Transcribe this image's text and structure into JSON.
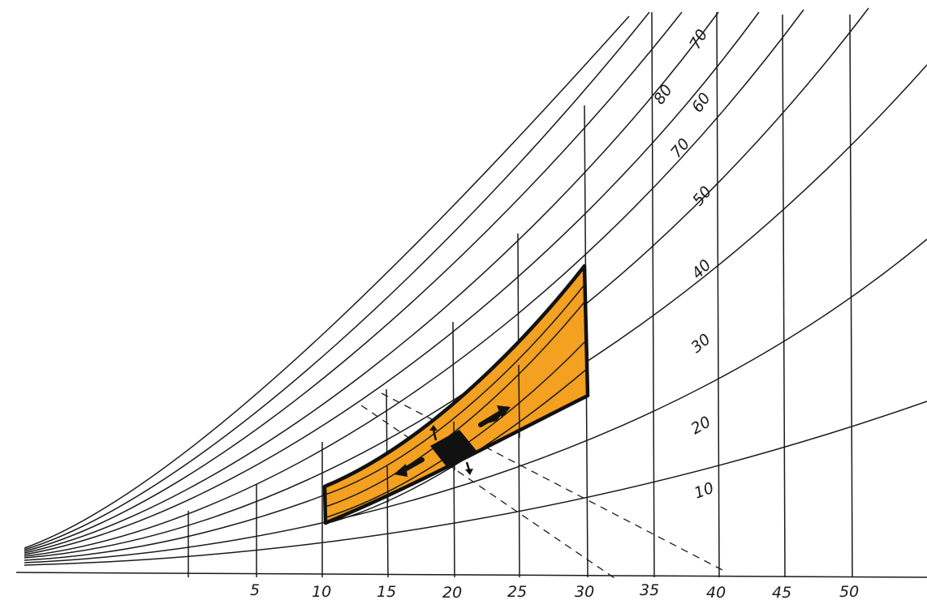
{
  "chart_data": {
    "type": "psychrometric-sketch",
    "x_ticks": [
      "5",
      "10",
      "15",
      "20",
      "25",
      "30",
      "35",
      "40",
      "45",
      "50"
    ],
    "rh_labels": [
      "10",
      "20",
      "30",
      "40",
      "50",
      "60",
      "70",
      "70",
      "80"
    ],
    "comfort_zone": {
      "dry_bulb_range": [
        10,
        30
      ],
      "fill_color": "#f4a020"
    },
    "colors": {
      "ink": "#1a1a1a",
      "zone_fill": "#f4a020"
    }
  }
}
